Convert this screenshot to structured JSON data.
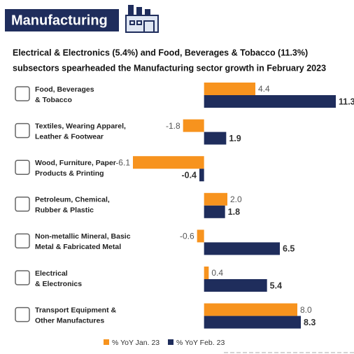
{
  "chart_data": {
    "type": "bar",
    "orientation": "horizontal",
    "title": "Manufacturing",
    "subtitle": [
      "Electrical & Electronics (5.4%) and Food, Beverages & Tobacco (11.3%)",
      "subsectors spearheaded the Manufacturing sector growth in February 2023"
    ],
    "categories": [
      [
        "Food, Beverages",
        "& Tobacco"
      ],
      [
        "Textiles, Wearing Apparel,",
        "Leather & Footwear"
      ],
      [
        "Wood, Furniture, Paper",
        "Products & Printing"
      ],
      [
        "Petroleum, Chemical,",
        "Rubber & Plastic"
      ],
      [
        "Non-metallic Mineral, Basic",
        "Metal & Fabricated Metal"
      ],
      [
        "Electrical",
        "& Electronics"
      ],
      [
        "Transport Equipment &",
        "Other Manufactures"
      ]
    ],
    "series": [
      {
        "name": "% YoY Jan. 23",
        "color": "#f7931e",
        "values": [
          4.4,
          -1.8,
          -6.1,
          2.0,
          -0.6,
          0.4,
          8.0
        ],
        "value_labels": [
          "4.4",
          "-1.8",
          "-6.1",
          "2.0",
          "-0.6",
          "0.4",
          "8.0"
        ]
      },
      {
        "name": "% YoY Feb. 23",
        "color": "#1f2d5c",
        "values": [
          11.3,
          1.9,
          -0.4,
          1.8,
          6.5,
          5.4,
          8.3
        ],
        "value_labels": [
          "11.3",
          "1.9",
          "-0.4",
          "1.8",
          "6.5",
          "5.4",
          "8.3"
        ]
      }
    ]
  }
}
